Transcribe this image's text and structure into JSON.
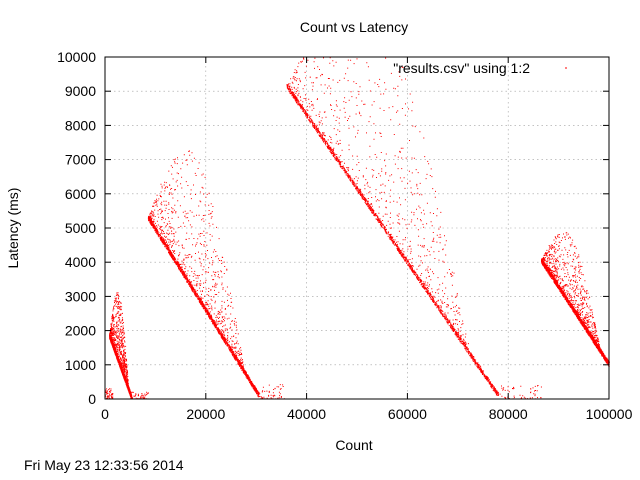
{
  "timestamp": "Fri May 23 12:33:56 2014",
  "chart_data": {
    "type": "scatter",
    "title": "Count vs Latency",
    "xlabel": "Count",
    "ylabel": "Latency (ms)",
    "xlim": [
      0,
      100000
    ],
    "ylim": [
      0,
      10000
    ],
    "grid": true,
    "legend_position": "top-right",
    "x_ticks": [
      0,
      20000,
      40000,
      60000,
      80000,
      100000
    ],
    "y_ticks": [
      0,
      1000,
      2000,
      3000,
      4000,
      5000,
      6000,
      7000,
      8000,
      9000,
      10000
    ],
    "series": [
      {
        "name": "\"results.csv\" using 1:2",
        "color": "#ff0000",
        "segments": [
          {
            "x0": 800,
            "y0": 1850,
            "x1": 5200,
            "y1": 50,
            "jitter": 2000
          },
          {
            "x0": 8500,
            "y0": 5300,
            "x1": 30500,
            "y1": 100,
            "jitter": 4000
          },
          {
            "x0": 36000,
            "y0": 9150,
            "x1": 78000,
            "y1": 100,
            "jitter": 6000
          },
          {
            "x0": 86500,
            "y0": 4050,
            "x1": 100000,
            "y1": 1000,
            "jitter": 2000
          }
        ],
        "floor_clusters": [
          {
            "x0": 0,
            "x1": 1500,
            "ymax": 300
          },
          {
            "x0": 5000,
            "x1": 8500,
            "ymax": 200
          },
          {
            "x0": 30500,
            "x1": 35500,
            "ymax": 450
          },
          {
            "x0": 78000,
            "x1": 86500,
            "ymax": 400
          }
        ]
      }
    ]
  }
}
